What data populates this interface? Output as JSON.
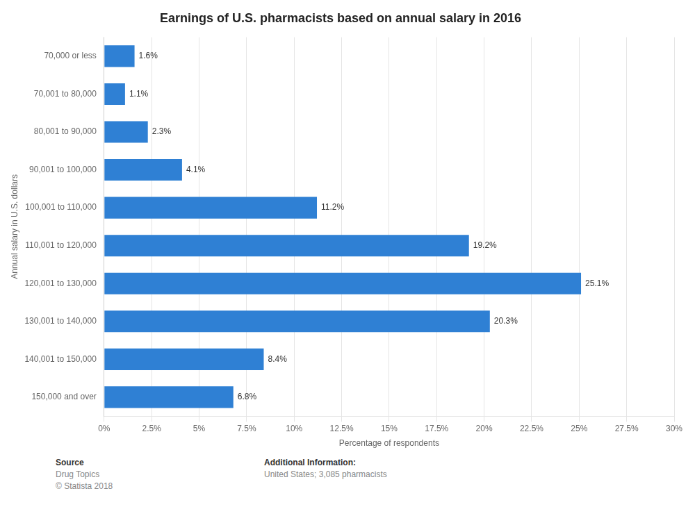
{
  "chart_data": {
    "type": "bar",
    "orientation": "horizontal",
    "title": "Earnings of U.S. pharmacists based on annual salary in 2016",
    "xlabel": "Percentage of respondents",
    "ylabel": "Annual salary in U.S. dollars",
    "categories": [
      "70,000 or less",
      "70,001 to 80,000",
      "80,001 to 90,000",
      "90,001 to 100,000",
      "100,001 to 110,000",
      "110,001 to 120,000",
      "120,001 to 130,000",
      "130,001 to 140,000",
      "140,001 to 150,000",
      "150,000 and over"
    ],
    "values": [
      1.6,
      1.1,
      2.3,
      4.1,
      11.2,
      19.2,
      25.1,
      20.3,
      8.4,
      6.8
    ],
    "value_labels": [
      "1.6%",
      "1.1%",
      "2.3%",
      "4.1%",
      "11.2%",
      "19.2%",
      "25.1%",
      "20.3%",
      "8.4%",
      "6.8%"
    ],
    "data_labels": true,
    "color": "#2F80D4",
    "xlim": [
      0,
      30
    ],
    "xticks": [
      {
        "value": 0,
        "label": "0%"
      },
      {
        "value": 2.5,
        "label": "2.5%"
      },
      {
        "value": 5,
        "label": "5%"
      },
      {
        "value": 7.5,
        "label": "7.5%"
      },
      {
        "value": 10,
        "label": "10%"
      },
      {
        "value": 12.5,
        "label": "12.5%"
      },
      {
        "value": 15,
        "label": "15%"
      },
      {
        "value": 17.5,
        "label": "17.5%"
      },
      {
        "value": 20,
        "label": "20%"
      },
      {
        "value": 22.5,
        "label": "22.5%"
      },
      {
        "value": 25,
        "label": "25%"
      },
      {
        "value": 27.5,
        "label": "27.5%"
      },
      {
        "value": 30,
        "label": "30%"
      }
    ],
    "grid": true,
    "annotations": [
      [
        "Source",
        "Drug Topics",
        "© Statista 2018"
      ],
      [
        "Additional Information:",
        "United States; 3,085 pharmacists"
      ]
    ]
  }
}
